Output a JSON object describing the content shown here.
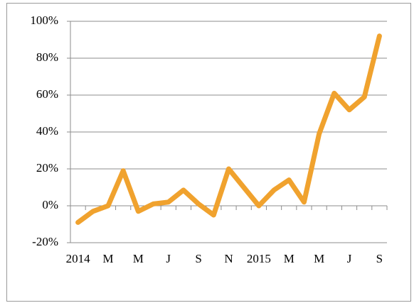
{
  "chart_data": {
    "type": "line",
    "categories": [
      "2014",
      null,
      "M",
      null,
      "M",
      null,
      "J",
      null,
      "S",
      null,
      "N",
      null,
      "2015",
      null,
      "M",
      null,
      "M",
      null,
      "J",
      null,
      "S"
    ],
    "series": [
      {
        "color": "#f0a22e",
        "values": [
          -9,
          -3,
          0,
          19,
          -3,
          1,
          2,
          8.5,
          1,
          -5,
          20,
          10,
          0,
          8.5,
          14,
          2,
          39,
          61,
          52,
          59,
          92
        ]
      }
    ],
    "ylim": [
      -20,
      100
    ],
    "yticks": [
      {
        "value": -20,
        "label": "-20%"
      },
      {
        "value": 0,
        "label": "0%"
      },
      {
        "value": 20,
        "label": "20%"
      },
      {
        "value": 40,
        "label": "40%"
      },
      {
        "value": 60,
        "label": "60%"
      },
      {
        "value": 80,
        "label": "80%"
      },
      {
        "value": 100,
        "label": "100%"
      }
    ],
    "grid": true
  }
}
